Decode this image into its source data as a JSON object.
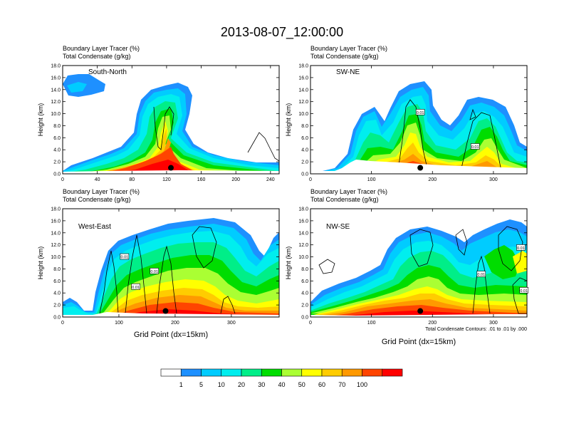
{
  "title": "2013-08-07_12:00:00",
  "footnote": "Total Condensate Contours: .01 to .01 by .000",
  "colorbar": {
    "labels": [
      "1",
      "5",
      "10",
      "20",
      "30",
      "40",
      "50",
      "60",
      "70",
      "100"
    ],
    "colors": [
      "#ffffff",
      "#1e90ff",
      "#00ccff",
      "#00eeee",
      "#00ee88",
      "#00dd00",
      "#aaff33",
      "#ffff00",
      "#ffcc00",
      "#ff9900",
      "#ff4400",
      "#ff0000"
    ]
  },
  "chart_data": [
    {
      "type": "heatmap",
      "name": "South-North",
      "field_label_1": "Boundary Layer Tracer   (%)",
      "field_label_2": "Total Condensate   (g/kg)",
      "ylabel": "Height (km)",
      "xlabel": "",
      "xlim": [
        0,
        250
      ],
      "ylim": [
        0,
        18
      ],
      "xticks": [
        "0",
        "40",
        "80",
        "120",
        "160",
        "200",
        "240"
      ],
      "yticks": [
        "0.0",
        "2.0",
        "4.0",
        "6.0",
        "8.0",
        "10.0",
        "12.0",
        "14.0",
        "16.0",
        "18.0"
      ],
      "marker_x": 125,
      "contour_labels": []
    },
    {
      "type": "heatmap",
      "name": "SW-NE",
      "field_label_1": "Boundary Layer Tracer   (%)",
      "field_label_2": "Total Condensate   (g/kg)",
      "ylabel": "Height (km)",
      "xlabel": "",
      "xlim": [
        0,
        355
      ],
      "ylim": [
        0,
        18
      ],
      "xticks": [
        "0",
        "100",
        "200",
        "300"
      ],
      "yticks": [
        "0.0",
        "2.0",
        "4.0",
        "6.0",
        "8.0",
        "10.0",
        "12.0",
        "14.0",
        "16.0",
        "18.0"
      ],
      "marker_x": 180,
      "contour_labels": [
        {
          "x": 180,
          "y": 10.2,
          "text": "0.01"
        },
        {
          "x": 270,
          "y": 4.5,
          "text": "0.01"
        }
      ]
    },
    {
      "type": "heatmap",
      "name": "West-East",
      "field_label_1": "Boundary Layer Tracer   (%)",
      "field_label_2": "Total Condensate   (g/kg)",
      "ylabel": "Height (km)",
      "xlabel": "Grid Point (dx=15km)",
      "xlim": [
        0,
        385
      ],
      "ylim": [
        0,
        18
      ],
      "xticks": [
        "0",
        "100",
        "200",
        "300"
      ],
      "yticks": [
        "0.0",
        "2.0",
        "4.0",
        "6.0",
        "8.0",
        "10.0",
        "12.0",
        "14.0",
        "16.0",
        "18.0"
      ],
      "marker_x": 183,
      "contour_labels": [
        {
          "x": 110,
          "y": 10.0,
          "text": "0.01"
        },
        {
          "x": 163,
          "y": 7.6,
          "text": "0.01"
        },
        {
          "x": 130,
          "y": 5.0,
          "text": "0.01"
        }
      ]
    },
    {
      "type": "heatmap",
      "name": "NW-SE",
      "field_label_1": "Boundary Layer Tracer   (%)",
      "field_label_2": "Total Condensate   (g/kg)",
      "ylabel": "Height (km)",
      "xlabel": "Grid Point (dx=15km)",
      "xlim": [
        0,
        355
      ],
      "ylim": [
        0,
        18
      ],
      "xticks": [
        "0",
        "100",
        "200",
        "300"
      ],
      "yticks": [
        "0.0",
        "2.0",
        "4.0",
        "6.0",
        "8.0",
        "10.0",
        "12.0",
        "14.0",
        "16.0",
        "18.0"
      ],
      "marker_x": 180,
      "contour_labels": [
        {
          "x": 345,
          "y": 11.5,
          "text": "0.01"
        },
        {
          "x": 280,
          "y": 7.1,
          "text": "0.01"
        },
        {
          "x": 350,
          "y": 4.4,
          "text": "0.01"
        }
      ]
    }
  ]
}
